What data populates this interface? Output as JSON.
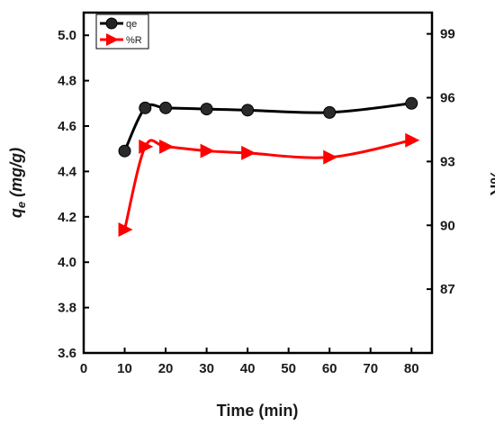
{
  "chart_data": {
    "type": "line",
    "x": [
      10,
      15,
      20,
      30,
      40,
      60,
      80
    ],
    "series": [
      {
        "name": "qe",
        "axis": "left",
        "marker": "circle",
        "color": "#000000",
        "values": [
          4.49,
          4.68,
          4.68,
          4.675,
          4.67,
          4.66,
          4.7
        ]
      },
      {
        "name": "%R",
        "axis": "right",
        "marker": "triangle-right",
        "color": "#ff0000",
        "values": [
          89.8,
          93.7,
          93.7,
          93.5,
          93.4,
          93.2,
          94.0
        ]
      }
    ],
    "xlabel": "Time (min)",
    "ylabel_left": "q",
    "ylabel_left_sub": "e",
    "ylabel_left_unit": " (mg/g)",
    "ylabel_right": "%R",
    "xlim": [
      0,
      85
    ],
    "ylim_left": [
      3.6,
      5.1
    ],
    "ylim_right": [
      84,
      100
    ],
    "xticks": [
      "0",
      "10",
      "20",
      "30",
      "40",
      "50",
      "60",
      "70",
      "80"
    ],
    "yticks_left": [
      "3.6",
      "3.8",
      "4.0",
      "4.2",
      "4.4",
      "4.6",
      "4.8",
      "5.0"
    ],
    "yticks_right": [
      "87",
      "90",
      "93",
      "96",
      "99"
    ],
    "legend_position": "top-left",
    "grid": false
  }
}
